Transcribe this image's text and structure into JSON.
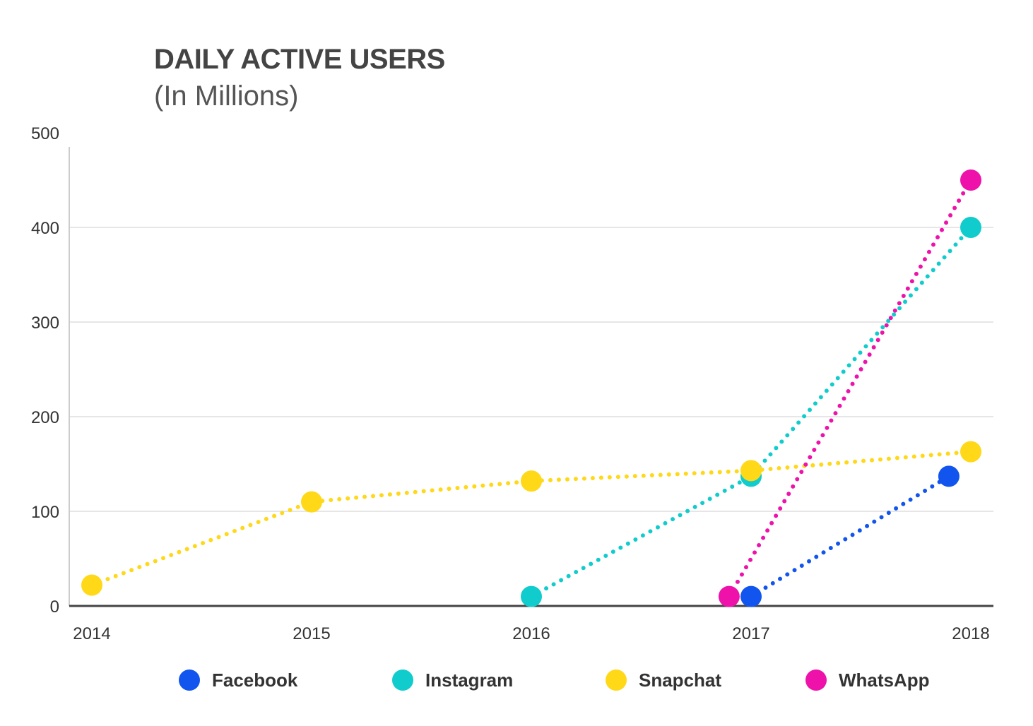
{
  "chart_data": {
    "type": "scatter",
    "title": "DAILY ACTIVE USERS",
    "subtitle": "(In Millions)",
    "xlabel": "",
    "ylabel": "",
    "ylim": [
      0,
      500
    ],
    "yticks": [
      0,
      100,
      200,
      300,
      400,
      500
    ],
    "ytick_labels": [
      "0",
      "100",
      "200",
      "300",
      "400",
      "500"
    ],
    "xticks": [
      2014,
      2015,
      2016,
      2017,
      2018
    ],
    "xtick_labels": [
      "2014",
      "2015",
      "2016",
      "2017",
      "2018"
    ],
    "xlim": [
      2014,
      2018
    ],
    "grid": true,
    "legend_position": "bottom",
    "line_style": "dotted",
    "series": [
      {
        "name": "Facebook",
        "color": "#1155EE",
        "points": [
          {
            "x": 2017.0,
            "y": 10
          },
          {
            "x": 2017.9,
            "y": 137
          }
        ]
      },
      {
        "name": "Instagram",
        "color": "#11CCCC",
        "points": [
          {
            "x": 2016.0,
            "y": 10
          },
          {
            "x": 2017.0,
            "y": 137
          },
          {
            "x": 2018.0,
            "y": 400
          }
        ]
      },
      {
        "name": "Snapchat",
        "color": "#FFD818",
        "points": [
          {
            "x": 2014.0,
            "y": 22
          },
          {
            "x": 2015.0,
            "y": 110
          },
          {
            "x": 2016.0,
            "y": 132
          },
          {
            "x": 2017.0,
            "y": 143
          },
          {
            "x": 2018.0,
            "y": 163
          }
        ]
      },
      {
        "name": "WhatsApp",
        "color": "#EE11AA",
        "points": [
          {
            "x": 2016.9,
            "y": 10
          },
          {
            "x": 2018.0,
            "y": 450
          }
        ]
      }
    ]
  }
}
